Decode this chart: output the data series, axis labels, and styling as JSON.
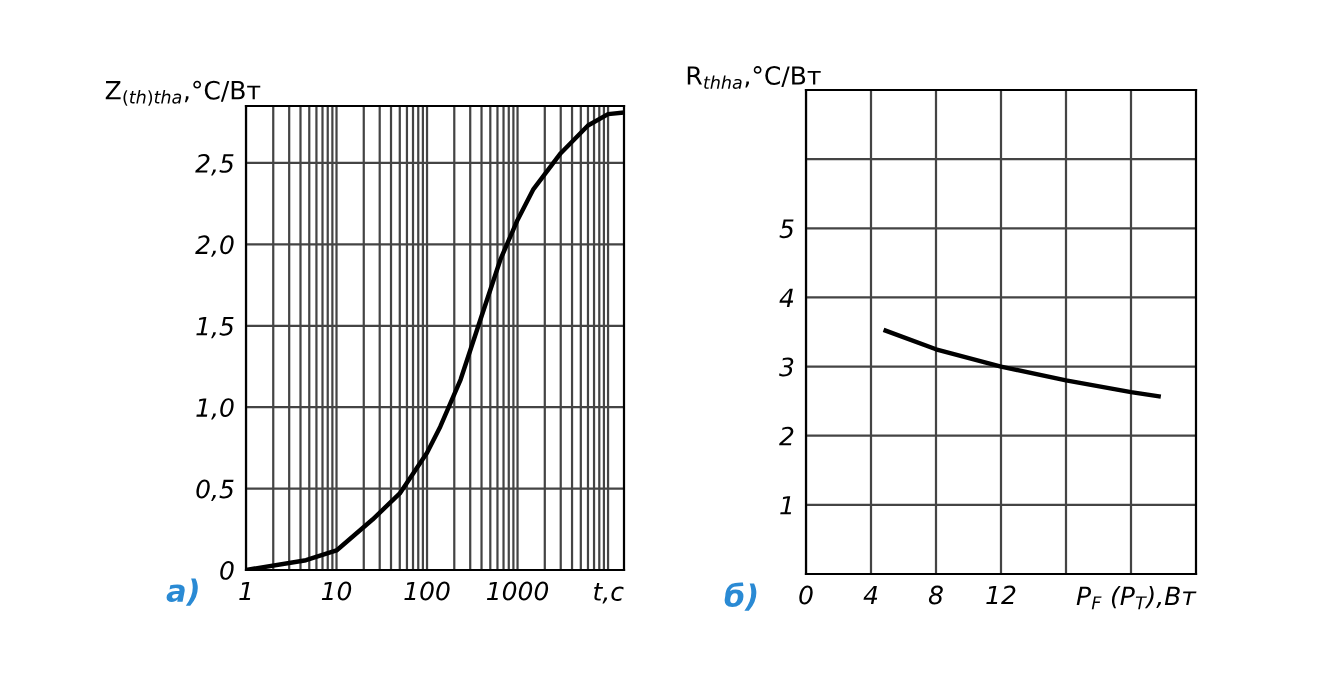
{
  "chart_data": [
    {
      "type": "line",
      "xlabel": "t,c",
      "ylabel": "Z$_{(th)tha}$,°C/Вт",
      "annotations": [
        "а)"
      ],
      "log": "x",
      "grid": true,
      "x": [
        1,
        4.6,
        10,
        25,
        50,
        100,
        140,
        235,
        390,
        650,
        1000,
        1500,
        3000,
        6000,
        10000,
        15000
      ],
      "series": [
        {
          "color": "#000000",
          "values": [
            0,
            0.06,
            0.12,
            0.31,
            0.47,
            0.72,
            0.88,
            1.17,
            1.54,
            1.91,
            2.15,
            2.34,
            2.56,
            2.73,
            2.8,
            2.81
          ]
        }
      ],
      "xlim": [
        1,
        15000
      ],
      "ylim": [
        0,
        2.85
      ],
      "xticks": [
        1,
        {
          "value": 2,
          "label": null
        },
        {
          "value": 3,
          "label": null
        },
        {
          "value": 4,
          "label": null
        },
        {
          "value": 5,
          "label": null
        },
        {
          "value": 6,
          "label": null
        },
        {
          "value": 7,
          "label": null
        },
        {
          "value": 8,
          "label": null
        },
        {
          "value": 9,
          "label": null
        },
        10,
        {
          "value": 20,
          "label": null
        },
        {
          "value": 30,
          "label": null
        },
        {
          "value": 40,
          "label": null
        },
        {
          "value": 50,
          "label": null
        },
        {
          "value": 60,
          "label": null
        },
        {
          "value": 70,
          "label": null
        },
        {
          "value": 80,
          "label": null
        },
        {
          "value": 90,
          "label": null
        },
        100,
        {
          "value": 200,
          "label": null
        },
        {
          "value": 300,
          "label": null
        },
        {
          "value": 400,
          "label": null
        },
        {
          "value": 500,
          "label": null
        },
        {
          "value": 600,
          "label": null
        },
        {
          "value": 700,
          "label": null
        },
        {
          "value": 800,
          "label": null
        },
        {
          "value": 900,
          "label": null
        },
        1000,
        {
          "value": 2000,
          "label": null
        },
        {
          "value": 3000,
          "label": null
        },
        {
          "value": 4000,
          "label": null
        },
        {
          "value": 5000,
          "label": null
        },
        {
          "value": 6000,
          "label": null
        },
        {
          "value": 7000,
          "label": null
        },
        {
          "value": 8000,
          "label": null
        },
        {
          "value": 9000,
          "label": null
        },
        {
          "value": 10000,
          "label": null
        }
      ],
      "yticks": [
        0,
        {
          "value": 0.5,
          "label": "0,5"
        },
        {
          "value": 1.0,
          "label": "1,0"
        },
        {
          "value": 1.5,
          "label": "1,5"
        },
        {
          "value": 2.0,
          "label": "2,0"
        },
        {
          "value": 2.5,
          "label": "2,5"
        }
      ]
    },
    {
      "type": "line",
      "xlabel": "P$_{F}$ (P$_{T}$),Вт",
      "ylabel": "R$_{thha}$,°C/Вт",
      "annotations": [
        "б)"
      ],
      "grid": true,
      "x": [
        4.9,
        8,
        12,
        16,
        20,
        21.7
      ],
      "series": [
        {
          "color": "#000000",
          "values": [
            3.52,
            3.25,
            3.0,
            2.8,
            2.63,
            2.57
          ]
        }
      ],
      "xlim": [
        0,
        24
      ],
      "ylim": [
        0,
        7
      ],
      "xticks": [
        0,
        4,
        8,
        12,
        {
          "value": 16,
          "label": null
        },
        {
          "value": 20,
          "label": null
        }
      ],
      "yticks": [
        1,
        2,
        3,
        4,
        5,
        {
          "value": 6,
          "label": null
        }
      ]
    }
  ]
}
